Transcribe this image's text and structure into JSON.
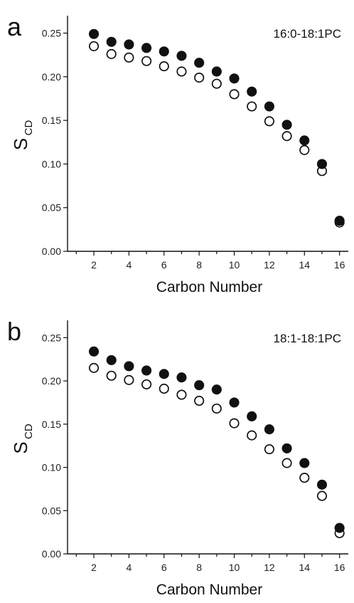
{
  "chart_data": [
    {
      "type": "scatter",
      "panel_label": "a",
      "title": "16:0-18:1PC",
      "xlabel": "Carbon Number",
      "ylabel": "S",
      "ylabel_subscript": "CD",
      "xlim": [
        0.5,
        16.5
      ],
      "ylim": [
        0.0,
        0.27
      ],
      "xticks": [
        2,
        4,
        6,
        8,
        10,
        12,
        14,
        16
      ],
      "yticks": [
        "0.00",
        "0.05",
        "0.10",
        "0.15",
        "0.20",
        "0.25"
      ],
      "grid": false,
      "x": [
        2,
        3,
        4,
        5,
        6,
        7,
        8,
        9,
        10,
        11,
        12,
        13,
        14,
        15,
        16
      ],
      "series": [
        {
          "marker": "filled",
          "values": [
            0.249,
            0.24,
            0.237,
            0.233,
            0.229,
            0.224,
            0.216,
            0.206,
            0.198,
            0.183,
            0.166,
            0.145,
            0.127,
            0.1,
            0.035
          ]
        },
        {
          "marker": "open",
          "values": [
            0.235,
            0.226,
            0.222,
            0.218,
            0.212,
            0.206,
            0.199,
            0.192,
            0.18,
            0.166,
            0.149,
            0.132,
            0.116,
            0.092,
            0.033
          ]
        }
      ]
    },
    {
      "type": "scatter",
      "panel_label": "b",
      "title": "18:1-18:1PC",
      "xlabel": "Carbon Number",
      "ylabel": "S",
      "ylabel_subscript": "CD",
      "xlim": [
        0.5,
        16.5
      ],
      "ylim": [
        0.0,
        0.27
      ],
      "xticks": [
        2,
        4,
        6,
        8,
        10,
        12,
        14,
        16
      ],
      "yticks": [
        "0.00",
        "0.05",
        "0.10",
        "0.15",
        "0.20",
        "0.25"
      ],
      "grid": false,
      "x": [
        2,
        3,
        4,
        5,
        6,
        7,
        8,
        9,
        10,
        11,
        12,
        13,
        14,
        15,
        16
      ],
      "series": [
        {
          "marker": "filled",
          "values": [
            0.234,
            0.224,
            0.217,
            0.212,
            0.208,
            0.204,
            0.195,
            0.19,
            0.175,
            0.159,
            0.144,
            0.122,
            0.105,
            0.08,
            0.03
          ]
        },
        {
          "marker": "open",
          "values": [
            0.215,
            0.206,
            0.201,
            0.196,
            0.191,
            0.184,
            0.177,
            0.168,
            0.151,
            0.137,
            0.121,
            0.105,
            0.088,
            0.067,
            0.024
          ]
        }
      ]
    }
  ]
}
